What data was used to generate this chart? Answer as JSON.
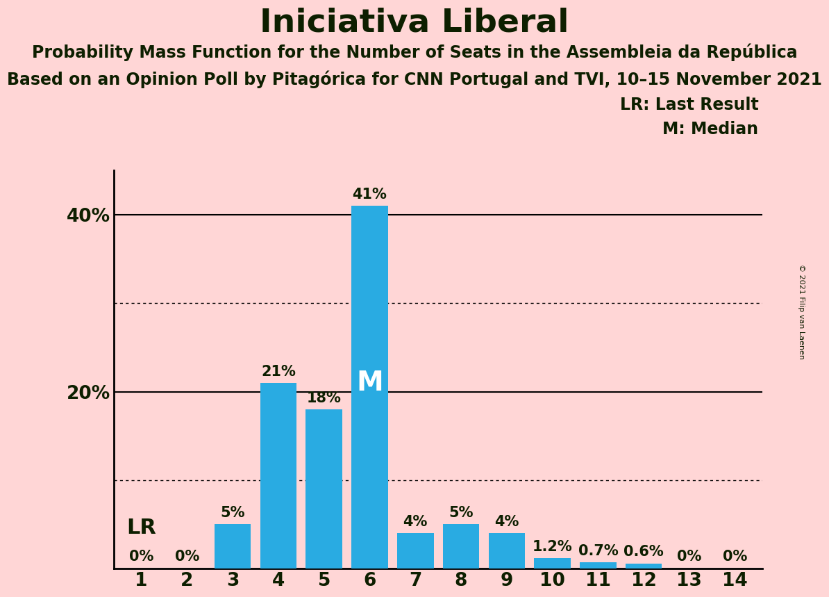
{
  "title": "Iniciativa Liberal",
  "subtitle1": "Probability Mass Function for the Number of Seats in the Assembleia da República",
  "subtitle2": "Based on an Opinion Poll by Pitagórica for CNN Portugal and TVI, 10–15 November 2021",
  "copyright": "© 2021 Filip van Laenen",
  "legend_lr": "LR: Last Result",
  "legend_m": "M: Median",
  "categories": [
    1,
    2,
    3,
    4,
    5,
    6,
    7,
    8,
    9,
    10,
    11,
    12,
    13,
    14
  ],
  "values": [
    0,
    0,
    5,
    21,
    18,
    41,
    4,
    5,
    4,
    1.2,
    0.7,
    0.6,
    0,
    0
  ],
  "labels": [
    "0%",
    "0%",
    "5%",
    "21%",
    "18%",
    "41%",
    "4%",
    "5%",
    "4%",
    "1.2%",
    "0.7%",
    "0.6%",
    "0%",
    "0%"
  ],
  "bar_color": "#29ABE2",
  "background_color": "#FFD6D6",
  "text_color": "#0d1f00",
  "lr_seat": 1,
  "median_seat": 6,
  "ylim": [
    0,
    45
  ],
  "yticks": [
    20,
    40
  ],
  "ytick_labels": [
    "20%",
    "40%"
  ],
  "solid_gridlines": [
    40,
    20
  ],
  "dotted_gridlines": [
    30,
    10
  ],
  "title_fontsize": 34,
  "subtitle_fontsize": 17,
  "label_fontsize": 15,
  "tick_fontsize": 19,
  "lr_fontsize": 22,
  "median_fontsize": 28,
  "legend_fontsize": 17
}
